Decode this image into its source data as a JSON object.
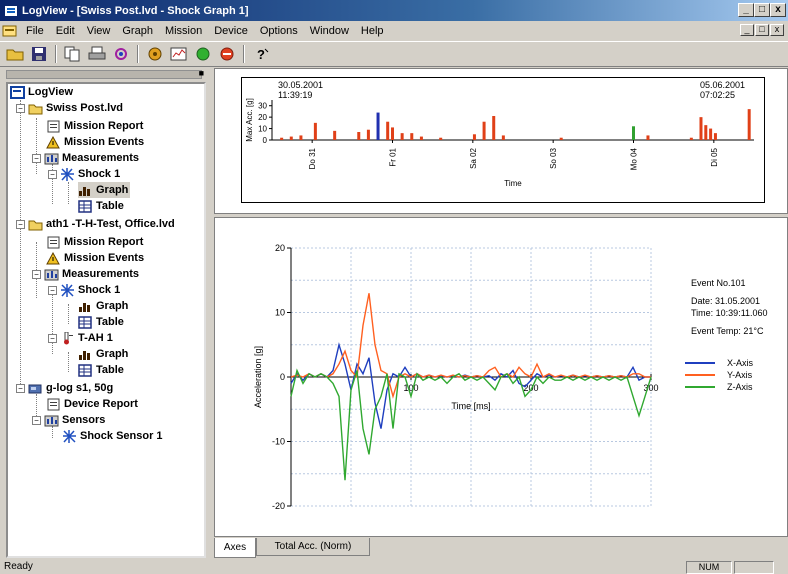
{
  "window": {
    "title": "LogView - [Swiss Post.lvd - Shock Graph 1]",
    "min": "_",
    "max": "□",
    "close": "x"
  },
  "menu": {
    "items": [
      "File",
      "Edit",
      "View",
      "Graph",
      "Mission",
      "Device",
      "Options",
      "Window",
      "Help"
    ]
  },
  "toolbar": {
    "icons": [
      "open-folder-icon",
      "save-icon",
      "copy-icon",
      "print-icon",
      "tool-icon",
      "target-icon",
      "graph-icon",
      "green-circle-icon",
      "red-circle-icon",
      "help-icon"
    ]
  },
  "tree": {
    "root": "LogView",
    "f1": "Swiss Post.lvd",
    "f1_report": "Mission Report",
    "f1_events": "Mission Events",
    "f1_meas": "Measurements",
    "f1_shock": "Shock 1",
    "f1_graph": "Graph",
    "f1_table": "Table",
    "f2": "ath1 -T-H-Test, Office.lvd",
    "f2_report": "Mission Report",
    "f2_events": "Mission Events",
    "f2_meas": "Measurements",
    "f2_shock": "Shock 1",
    "f2_graph": "Graph",
    "f2_table": "Table",
    "f2_tah": "T-AH 1",
    "f2_graph2": "Graph",
    "f2_table2": "Table",
    "f3": "g-log s1, 50g",
    "f3_device": "Device Report",
    "f3_sensors": "Sensors",
    "f3_shock": "Shock Sensor 1"
  },
  "overview": {
    "start_date": "30.05.2001",
    "start_time": "11:39:19",
    "end_date": "05.06.2001",
    "end_time": "07:02:25",
    "ylabel": "Max Acc. [g]",
    "xlabel": "Time",
    "day_ticks": [
      "Do 31",
      "Fr 01",
      "Sa 02",
      "So 03",
      "Mo 04",
      "Di 05"
    ]
  },
  "shock_info": {
    "event_no": "Event No.101",
    "date": "Date: 31.05.2001",
    "time": "Time: 10:39:11.060",
    "temp": "Event Temp: 21°C"
  },
  "tabs": {
    "axes": "Axes",
    "total": "Total Acc. (Norm)"
  },
  "status": {
    "text": "Ready",
    "num": "NUM"
  },
  "chart_data": [
    {
      "type": "bar",
      "ylabel": "Max Acc. [g]",
      "xlabel": "Time",
      "ylim": [
        0,
        35
      ],
      "yticks": [
        0,
        10,
        20,
        30
      ],
      "x": [
        0.02,
        0.04,
        0.06,
        0.09,
        0.13,
        0.18,
        0.2,
        0.22,
        0.24,
        0.25,
        0.27,
        0.29,
        0.31,
        0.35,
        0.42,
        0.44,
        0.46,
        0.48,
        0.6,
        0.75,
        0.78,
        0.87,
        0.89,
        0.9,
        0.91,
        0.92,
        0.99
      ],
      "values": [
        2,
        3,
        4,
        15,
        8,
        7,
        9,
        24,
        16,
        11,
        6,
        6,
        3,
        2,
        5,
        16,
        21,
        4,
        2,
        12,
        4,
        2,
        20,
        13,
        10,
        6,
        27
      ],
      "colors": [
        "red",
        "red",
        "red",
        "red",
        "red",
        "red",
        "red",
        "blue",
        "red",
        "red",
        "red",
        "red",
        "red",
        "red",
        "red",
        "red",
        "red",
        "red",
        "red",
        "green",
        "red",
        "red",
        "red",
        "red",
        "red",
        "red",
        "red"
      ],
      "categories": [
        "Do 31",
        "Fr 01",
        "Sa 02",
        "So 03",
        "Mo 04",
        "Di 05"
      ]
    },
    {
      "type": "line",
      "xlabel": "Time [ms]",
      "ylabel": "Acceleration [g]",
      "xlim": [
        0,
        300
      ],
      "ylim": [
        -20,
        20
      ],
      "xticks": [
        100,
        200,
        300
      ],
      "yticks": [
        20,
        10,
        0,
        -10,
        -20
      ],
      "legend": "right",
      "x": [
        0,
        5,
        10,
        15,
        20,
        25,
        30,
        35,
        40,
        45,
        50,
        55,
        60,
        65,
        70,
        75,
        80,
        85,
        90,
        95,
        100,
        105,
        110,
        115,
        120,
        125,
        130,
        135,
        140,
        145,
        150,
        155,
        160,
        165,
        170,
        175,
        180,
        185,
        190,
        195,
        200,
        205,
        210,
        215,
        220,
        225,
        230,
        235,
        240,
        245,
        250,
        255,
        260,
        265,
        270,
        275,
        280,
        285,
        290,
        295,
        300
      ],
      "series": [
        {
          "name": "X-Axis",
          "color": "#1f3fbf",
          "values": [
            -1,
            0.5,
            -0.5,
            0.5,
            0,
            0.5,
            0,
            1,
            5,
            2,
            -2,
            2,
            0.5,
            3,
            -4,
            -8,
            -2,
            0.5,
            0,
            1.5,
            0,
            0.5,
            0,
            0.3,
            0,
            0.2,
            0,
            0.2,
            0,
            0.3,
            0,
            0.2,
            0,
            0.2,
            -0.5,
            0.5,
            0,
            1,
            -1,
            -1.5,
            -0.5,
            0.5,
            0,
            0.3,
            0,
            0.2,
            0,
            0.3,
            0,
            0.2,
            0,
            0.2,
            0,
            0.2,
            0,
            0.2,
            0,
            1.5,
            -0.5,
            0,
            0
          ]
        },
        {
          "name": "Y-Axis",
          "color": "#ff6020",
          "values": [
            0,
            0.3,
            0,
            0.5,
            0,
            0.5,
            0,
            0.5,
            2,
            4,
            1,
            0,
            8,
            13,
            5,
            1,
            0.5,
            -3,
            0,
            0.5,
            0,
            0.5,
            0,
            0.3,
            0,
            0.3,
            0,
            0.3,
            0,
            0.2,
            0,
            0.2,
            0,
            1,
            1.5,
            0,
            0.5,
            0,
            1.5,
            0.5,
            0,
            2,
            0,
            0.5,
            0,
            0.3,
            0,
            0.3,
            0,
            0.3,
            0,
            0.2,
            0,
            0.2,
            0,
            0.2,
            0,
            0.5,
            0.5,
            0,
            0
          ]
        },
        {
          "name": "Z-Axis",
          "color": "#30a830",
          "values": [
            -3,
            1,
            -1,
            0.5,
            0,
            0.5,
            0,
            -1,
            -3,
            -16,
            -2,
            1,
            -8,
            -12,
            -5,
            -3,
            0.5,
            -8,
            0.5,
            0,
            -3,
            0.5,
            -0.5,
            0,
            -0.5,
            0,
            -1,
            0,
            0.5,
            -0.5,
            0,
            -0.5,
            0,
            -1,
            -2,
            0,
            0.5,
            -1,
            0,
            -3,
            -2,
            0,
            -1,
            0,
            -0.5,
            -0.5,
            0,
            -0.5,
            0,
            -0.5,
            0,
            -0.5,
            0,
            -0.5,
            0,
            -0.5,
            0,
            -3,
            -6,
            -3,
            0
          ]
        }
      ]
    }
  ]
}
